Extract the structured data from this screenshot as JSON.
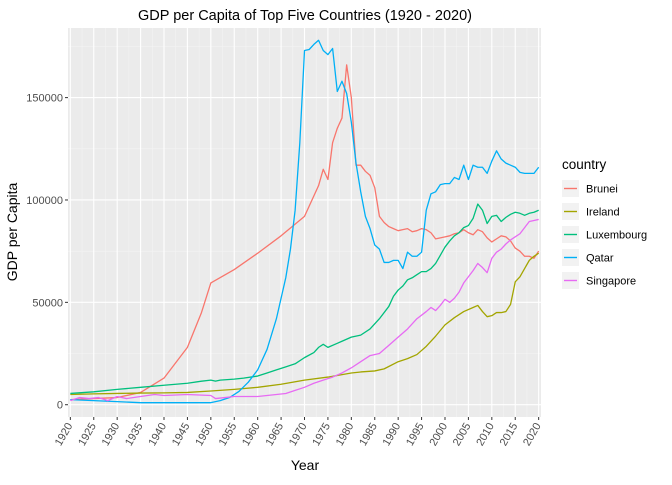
{
  "chart_data": {
    "type": "line",
    "title": "GDP per Capita of Top Five Countries (1920 - 2020)",
    "xlabel": "Year",
    "ylabel": "GDP per Capita",
    "xlim": [
      1919.5,
      2020.5
    ],
    "ylim": [
      -6000,
      184000
    ],
    "x_ticks": [
      1920,
      1925,
      1930,
      1935,
      1940,
      1945,
      1950,
      1955,
      1960,
      1965,
      1970,
      1975,
      1980,
      1985,
      1990,
      1995,
      2000,
      2005,
      2010,
      2015,
      2020
    ],
    "y_ticks": [
      0,
      50000,
      100000,
      150000
    ],
    "y_tick_labels": [
      "0",
      "50000",
      "100000",
      "150000"
    ],
    "grid": true,
    "legend": {
      "title": "country",
      "placement": "right"
    },
    "panel_background": "#EBEBEB",
    "series": [
      {
        "name": "Brunei",
        "color": "#F8766D",
        "points": [
          [
            1920,
            2500
          ],
          [
            1925,
            3000
          ],
          [
            1930,
            3500
          ],
          [
            1935,
            6000
          ],
          [
            1940,
            13000
          ],
          [
            1945,
            28000
          ],
          [
            1948,
            45000
          ],
          [
            1950,
            59500
          ],
          [
            1955,
            66000
          ],
          [
            1960,
            74000
          ],
          [
            1965,
            82500
          ],
          [
            1970,
            92000
          ],
          [
            1972,
            102000
          ],
          [
            1973,
            107000
          ],
          [
            1974,
            115000
          ],
          [
            1975,
            110000
          ],
          [
            1976,
            128000
          ],
          [
            1977,
            135000
          ],
          [
            1978,
            140000
          ],
          [
            1979,
            166000
          ],
          [
            1980,
            150000
          ],
          [
            1981,
            117000
          ],
          [
            1982,
            117000
          ],
          [
            1983,
            114000
          ],
          [
            1984,
            112000
          ],
          [
            1985,
            106000
          ],
          [
            1986,
            92000
          ],
          [
            1987,
            89000
          ],
          [
            1988,
            87000
          ],
          [
            1989,
            86000
          ],
          [
            1990,
            85000
          ],
          [
            1991,
            85500
          ],
          [
            1992,
            86000
          ],
          [
            1993,
            84500
          ],
          [
            1994,
            85000
          ],
          [
            1995,
            86000
          ],
          [
            1996,
            85500
          ],
          [
            1997,
            84000
          ],
          [
            1998,
            81000
          ],
          [
            1999,
            81500
          ],
          [
            2000,
            82000
          ],
          [
            2001,
            82500
          ],
          [
            2002,
            83500
          ],
          [
            2003,
            84000
          ],
          [
            2004,
            85500
          ],
          [
            2005,
            84000
          ],
          [
            2006,
            83000
          ],
          [
            2007,
            85500
          ],
          [
            2008,
            84500
          ],
          [
            2009,
            81500
          ],
          [
            2010,
            79500
          ],
          [
            2011,
            81000
          ],
          [
            2012,
            82500
          ],
          [
            2013,
            82000
          ],
          [
            2014,
            80000
          ],
          [
            2015,
            76500
          ],
          [
            2016,
            75000
          ],
          [
            2017,
            72500
          ],
          [
            2018,
            72500
          ],
          [
            2019,
            71500
          ],
          [
            2020,
            75000
          ]
        ]
      },
      {
        "name": "Ireland",
        "color": "#A3A500",
        "points": [
          [
            1920,
            5000
          ],
          [
            1925,
            5300
          ],
          [
            1930,
            5500
          ],
          [
            1935,
            5700
          ],
          [
            1940,
            5800
          ],
          [
            1945,
            6000
          ],
          [
            1950,
            6700
          ],
          [
            1955,
            7500
          ],
          [
            1960,
            8500
          ],
          [
            1965,
            10000
          ],
          [
            1970,
            12000
          ],
          [
            1975,
            13500
          ],
          [
            1980,
            15500
          ],
          [
            1982,
            16000
          ],
          [
            1985,
            16500
          ],
          [
            1987,
            17500
          ],
          [
            1990,
            21000
          ],
          [
            1992,
            22500
          ],
          [
            1994,
            24500
          ],
          [
            1996,
            28500
          ],
          [
            1998,
            33500
          ],
          [
            2000,
            39000
          ],
          [
            2002,
            42500
          ],
          [
            2004,
            45500
          ],
          [
            2006,
            47500
          ],
          [
            2007,
            48500
          ],
          [
            2008,
            45500
          ],
          [
            2009,
            43000
          ],
          [
            2010,
            43500
          ],
          [
            2011,
            45000
          ],
          [
            2012,
            45000
          ],
          [
            2013,
            45500
          ],
          [
            2014,
            49000
          ],
          [
            2015,
            60000
          ],
          [
            2016,
            62500
          ],
          [
            2017,
            66500
          ],
          [
            2018,
            70500
          ],
          [
            2019,
            72500
          ],
          [
            2020,
            74000
          ]
        ]
      },
      {
        "name": "Luxembourg",
        "color": "#00BF7D",
        "points": [
          [
            1920,
            5500
          ],
          [
            1925,
            6300
          ],
          [
            1930,
            7500
          ],
          [
            1935,
            8500
          ],
          [
            1940,
            9500
          ],
          [
            1945,
            10500
          ],
          [
            1948,
            11500
          ],
          [
            1950,
            12000
          ],
          [
            1951,
            11500
          ],
          [
            1952,
            12000
          ],
          [
            1955,
            12500
          ],
          [
            1957,
            13000
          ],
          [
            1960,
            14000
          ],
          [
            1962,
            15500
          ],
          [
            1964,
            17000
          ],
          [
            1966,
            18500
          ],
          [
            1968,
            20000
          ],
          [
            1970,
            23000
          ],
          [
            1972,
            25500
          ],
          [
            1973,
            28000
          ],
          [
            1974,
            29500
          ],
          [
            1975,
            28000
          ],
          [
            1977,
            30000
          ],
          [
            1978,
            31000
          ],
          [
            1980,
            33000
          ],
          [
            1982,
            34000
          ],
          [
            1984,
            37000
          ],
          [
            1986,
            42000
          ],
          [
            1988,
            48000
          ],
          [
            1989,
            53000
          ],
          [
            1990,
            56000
          ],
          [
            1991,
            58000
          ],
          [
            1992,
            61000
          ],
          [
            1993,
            62000
          ],
          [
            1994,
            63500
          ],
          [
            1995,
            65000
          ],
          [
            1996,
            65000
          ],
          [
            1997,
            66500
          ],
          [
            1998,
            69000
          ],
          [
            1999,
            73000
          ],
          [
            2000,
            77000
          ],
          [
            2001,
            80000
          ],
          [
            2002,
            82500
          ],
          [
            2003,
            84000
          ],
          [
            2004,
            86500
          ],
          [
            2005,
            87500
          ],
          [
            2006,
            91000
          ],
          [
            2007,
            98000
          ],
          [
            2008,
            95000
          ],
          [
            2009,
            88500
          ],
          [
            2010,
            92000
          ],
          [
            2011,
            92500
          ],
          [
            2012,
            89500
          ],
          [
            2013,
            91500
          ],
          [
            2014,
            93000
          ],
          [
            2015,
            94000
          ],
          [
            2016,
            93500
          ],
          [
            2017,
            92500
          ],
          [
            2018,
            93500
          ],
          [
            2019,
            94000
          ],
          [
            2020,
            95000
          ]
        ]
      },
      {
        "name": "Qatar",
        "color": "#00B0F6",
        "points": [
          [
            1920,
            2500
          ],
          [
            1925,
            2000
          ],
          [
            1930,
            1500
          ],
          [
            1935,
            1000
          ],
          [
            1940,
            1000
          ],
          [
            1945,
            1000
          ],
          [
            1950,
            1000
          ],
          [
            1952,
            2000
          ],
          [
            1954,
            3500
          ],
          [
            1956,
            6500
          ],
          [
            1958,
            11000
          ],
          [
            1960,
            17000
          ],
          [
            1962,
            27000
          ],
          [
            1964,
            42000
          ],
          [
            1966,
            62000
          ],
          [
            1967,
            76000
          ],
          [
            1968,
            95000
          ],
          [
            1969,
            128000
          ],
          [
            1970,
            173000
          ],
          [
            1971,
            173500
          ],
          [
            1972,
            176000
          ],
          [
            1973,
            178000
          ],
          [
            1974,
            173000
          ],
          [
            1975,
            171000
          ],
          [
            1976,
            174000
          ],
          [
            1977,
            153000
          ],
          [
            1978,
            158000
          ],
          [
            1979,
            152000
          ],
          [
            1980,
            138000
          ],
          [
            1981,
            118000
          ],
          [
            1982,
            104000
          ],
          [
            1983,
            92000
          ],
          [
            1984,
            86000
          ],
          [
            1985,
            78000
          ],
          [
            1986,
            76000
          ],
          [
            1987,
            69500
          ],
          [
            1988,
            69500
          ],
          [
            1989,
            70500
          ],
          [
            1990,
            70500
          ],
          [
            1991,
            66500
          ],
          [
            1992,
            74500
          ],
          [
            1993,
            72500
          ],
          [
            1994,
            72500
          ],
          [
            1995,
            74500
          ],
          [
            1996,
            95000
          ],
          [
            1997,
            103000
          ],
          [
            1998,
            104000
          ],
          [
            1999,
            107500
          ],
          [
            2000,
            108000
          ],
          [
            2001,
            108000
          ],
          [
            2002,
            111000
          ],
          [
            2003,
            110000
          ],
          [
            2004,
            117000
          ],
          [
            2005,
            110000
          ],
          [
            2006,
            117000
          ],
          [
            2007,
            116000
          ],
          [
            2008,
            116000
          ],
          [
            2009,
            113000
          ],
          [
            2010,
            119000
          ],
          [
            2011,
            124000
          ],
          [
            2012,
            120000
          ],
          [
            2013,
            118000
          ],
          [
            2014,
            117000
          ],
          [
            2015,
            116000
          ],
          [
            2016,
            113500
          ],
          [
            2017,
            113000
          ],
          [
            2018,
            113000
          ],
          [
            2019,
            113000
          ],
          [
            2020,
            116000
          ]
        ]
      },
      {
        "name": "Singapore",
        "color": "#E76BF3",
        "points": [
          [
            1920,
            2000
          ],
          [
            1922,
            3500
          ],
          [
            1924,
            3000
          ],
          [
            1926,
            3500
          ],
          [
            1928,
            2000
          ],
          [
            1930,
            4000
          ],
          [
            1932,
            3000
          ],
          [
            1935,
            4000
          ],
          [
            1938,
            5000
          ],
          [
            1940,
            4500
          ],
          [
            1945,
            5000
          ],
          [
            1950,
            4500
          ],
          [
            1951,
            3000
          ],
          [
            1953,
            3500
          ],
          [
            1955,
            4000
          ],
          [
            1957,
            4000
          ],
          [
            1960,
            4000
          ],
          [
            1962,
            4500
          ],
          [
            1964,
            5000
          ],
          [
            1966,
            5500
          ],
          [
            1968,
            7000
          ],
          [
            1970,
            8500
          ],
          [
            1972,
            10500
          ],
          [
            1974,
            12000
          ],
          [
            1976,
            13500
          ],
          [
            1978,
            15500
          ],
          [
            1980,
            18000
          ],
          [
            1982,
            21000
          ],
          [
            1984,
            24000
          ],
          [
            1986,
            25000
          ],
          [
            1988,
            29000
          ],
          [
            1990,
            33000
          ],
          [
            1992,
            37000
          ],
          [
            1994,
            42000
          ],
          [
            1996,
            45500
          ],
          [
            1997,
            47500
          ],
          [
            1998,
            46000
          ],
          [
            1999,
            48500
          ],
          [
            2000,
            51500
          ],
          [
            2001,
            50000
          ],
          [
            2002,
            52000
          ],
          [
            2003,
            55000
          ],
          [
            2004,
            59500
          ],
          [
            2005,
            62500
          ],
          [
            2006,
            65500
          ],
          [
            2007,
            69000
          ],
          [
            2008,
            67000
          ],
          [
            2009,
            64500
          ],
          [
            2010,
            71500
          ],
          [
            2011,
            74500
          ],
          [
            2012,
            76000
          ],
          [
            2013,
            78500
          ],
          [
            2014,
            80500
          ],
          [
            2015,
            82000
          ],
          [
            2016,
            83500
          ],
          [
            2017,
            86500
          ],
          [
            2018,
            89500
          ],
          [
            2019,
            90000
          ],
          [
            2020,
            90500
          ]
        ]
      }
    ]
  }
}
